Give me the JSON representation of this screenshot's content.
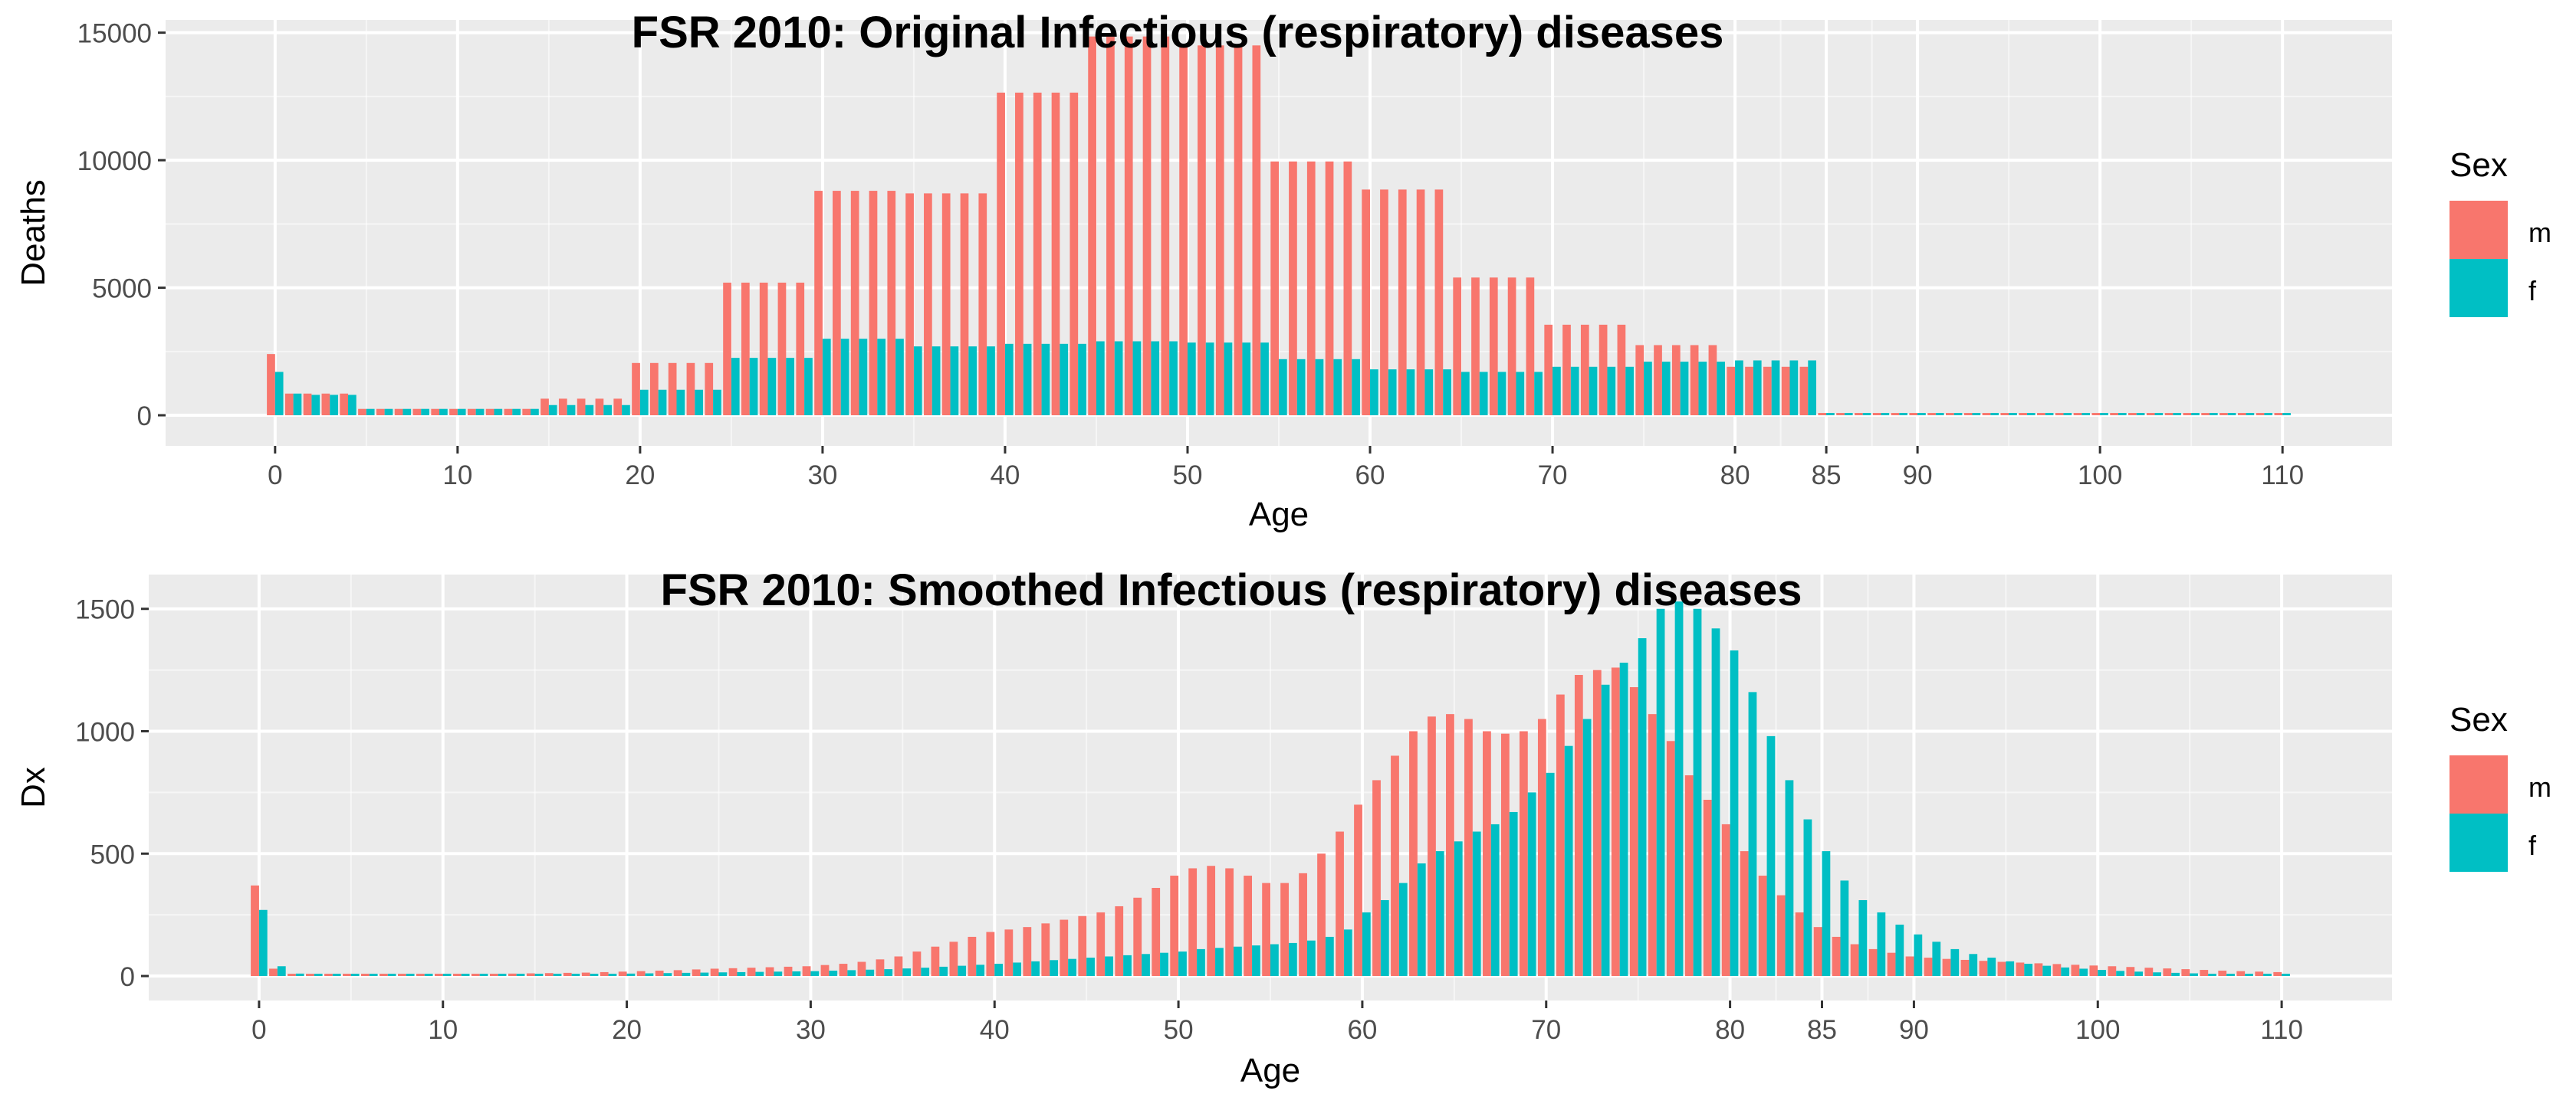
{
  "colors": {
    "m": "#F8766D",
    "f": "#00BFC4",
    "panel": "#EBEBEB",
    "grid_major": "#FFFFFF",
    "text": "#4D4D4D",
    "title": "#000000"
  },
  "chart_data": [
    {
      "type": "bar",
      "title": "FSR 2010: Original Infectious (respiratory) diseases",
      "xlabel": "Age",
      "ylabel": "Deaths",
      "legend_title": "Sex",
      "legend_position": "right",
      "grid": true,
      "xlim": [
        -6,
        116
      ],
      "ylim": [
        -1200,
        15500
      ],
      "x_ticks": [
        0,
        10,
        20,
        30,
        40,
        50,
        60,
        70,
        80,
        85,
        90,
        100,
        110
      ],
      "y_ticks": [
        0,
        5000,
        10000,
        15000
      ],
      "x": [
        0,
        1,
        2,
        3,
        4,
        5,
        6,
        7,
        8,
        9,
        10,
        11,
        12,
        13,
        14,
        15,
        16,
        17,
        18,
        19,
        20,
        21,
        22,
        23,
        24,
        25,
        26,
        27,
        28,
        29,
        30,
        31,
        32,
        33,
        34,
        35,
        36,
        37,
        38,
        39,
        40,
        41,
        42,
        43,
        44,
        45,
        46,
        47,
        48,
        49,
        50,
        51,
        52,
        53,
        54,
        55,
        56,
        57,
        58,
        59,
        60,
        61,
        62,
        63,
        64,
        65,
        66,
        67,
        68,
        69,
        70,
        71,
        72,
        73,
        74,
        75,
        76,
        77,
        78,
        79,
        80,
        81,
        82,
        83,
        84,
        85,
        86,
        87,
        88,
        89,
        90,
        91,
        92,
        93,
        94,
        95,
        96,
        97,
        98,
        99,
        100,
        101,
        102,
        103,
        104,
        105,
        106,
        107,
        108,
        109,
        110
      ],
      "series": [
        {
          "name": "m",
          "values": [
            2400,
            850,
            850,
            850,
            850,
            250,
            250,
            250,
            250,
            250,
            250,
            250,
            250,
            250,
            250,
            650,
            650,
            650,
            650,
            650,
            2050,
            2050,
            2050,
            2050,
            2050,
            5200,
            5200,
            5200,
            5200,
            5200,
            8800,
            8800,
            8800,
            8800,
            8800,
            8700,
            8700,
            8700,
            8700,
            8700,
            12650,
            12650,
            12650,
            12650,
            12650,
            14850,
            14850,
            14850,
            14850,
            14850,
            14500,
            14500,
            14500,
            14500,
            14500,
            9950,
            9950,
            9950,
            9950,
            9950,
            8850,
            8850,
            8850,
            8850,
            8850,
            5400,
            5400,
            5400,
            5400,
            5400,
            3550,
            3550,
            3550,
            3550,
            3550,
            2750,
            2750,
            2750,
            2750,
            2750,
            1900,
            1900,
            1900,
            1900,
            1900,
            0,
            0,
            0,
            0,
            0,
            0,
            0,
            0,
            0,
            0,
            0,
            0,
            0,
            0,
            0,
            0,
            0,
            0,
            0,
            0,
            0,
            0,
            0,
            0,
            0,
            0
          ]
        },
        {
          "name": "f",
          "values": [
            1700,
            850,
            800,
            800,
            800,
            250,
            250,
            250,
            250,
            250,
            250,
            250,
            250,
            250,
            250,
            400,
            400,
            400,
            400,
            400,
            1000,
            1000,
            1000,
            1000,
            1000,
            2250,
            2250,
            2250,
            2250,
            2250,
            3000,
            3000,
            3000,
            3000,
            3000,
            2700,
            2700,
            2700,
            2700,
            2700,
            2800,
            2800,
            2800,
            2800,
            2800,
            2900,
            2900,
            2900,
            2900,
            2900,
            2850,
            2850,
            2850,
            2850,
            2850,
            2200,
            2200,
            2200,
            2200,
            2200,
            1800,
            1800,
            1800,
            1800,
            1800,
            1700,
            1700,
            1700,
            1700,
            1700,
            1900,
            1900,
            1900,
            1900,
            1900,
            2100,
            2100,
            2100,
            2100,
            2100,
            2150,
            2150,
            2150,
            2150,
            2150,
            0,
            0,
            0,
            0,
            0,
            0,
            0,
            0,
            0,
            0,
            0,
            0,
            0,
            0,
            0,
            0,
            0,
            0,
            0,
            0,
            0,
            0,
            0,
            0,
            0,
            0
          ]
        }
      ]
    },
    {
      "type": "bar",
      "title": "FSR 2010: Smoothed Infectious (respiratory) diseases",
      "xlabel": "Age",
      "ylabel": "Dx",
      "legend_title": "Sex",
      "legend_position": "right",
      "grid": true,
      "xlim": [
        -6,
        116
      ],
      "ylim": [
        -100,
        1640
      ],
      "x_ticks": [
        0,
        10,
        20,
        30,
        40,
        50,
        60,
        70,
        80,
        85,
        90,
        100,
        110
      ],
      "y_ticks": [
        0,
        500,
        1000,
        1500
      ],
      "x": [
        0,
        1,
        2,
        3,
        4,
        5,
        6,
        7,
        8,
        9,
        10,
        11,
        12,
        13,
        14,
        15,
        16,
        17,
        18,
        19,
        20,
        21,
        22,
        23,
        24,
        25,
        26,
        27,
        28,
        29,
        30,
        31,
        32,
        33,
        34,
        35,
        36,
        37,
        38,
        39,
        40,
        41,
        42,
        43,
        44,
        45,
        46,
        47,
        48,
        49,
        50,
        51,
        52,
        53,
        54,
        55,
        56,
        57,
        58,
        59,
        60,
        61,
        62,
        63,
        64,
        65,
        66,
        67,
        68,
        69,
        70,
        71,
        72,
        73,
        74,
        75,
        76,
        77,
        78,
        79,
        80,
        81,
        82,
        83,
        84,
        85,
        86,
        87,
        88,
        89,
        90,
        91,
        92,
        93,
        94,
        95,
        96,
        97,
        98,
        99,
        100,
        101,
        102,
        103,
        104,
        105,
        106,
        107,
        108,
        109,
        110
      ],
      "series": [
        {
          "name": "m",
          "values": [
            370,
            30,
            5,
            3,
            3,
            3,
            3,
            3,
            4,
            5,
            6,
            7,
            8,
            9,
            10,
            11,
            12,
            13,
            14,
            16,
            18,
            20,
            22,
            24,
            27,
            30,
            32,
            34,
            36,
            38,
            40,
            45,
            50,
            58,
            68,
            80,
            100,
            120,
            140,
            160,
            180,
            190,
            200,
            215,
            230,
            245,
            260,
            285,
            320,
            360,
            410,
            440,
            450,
            440,
            410,
            380,
            380,
            420,
            500,
            590,
            700,
            800,
            900,
            1000,
            1060,
            1070,
            1050,
            1000,
            990,
            1000,
            1050,
            1150,
            1230,
            1250,
            1260,
            1180,
            1070,
            960,
            820,
            720,
            620,
            510,
            410,
            330,
            260,
            200,
            160,
            130,
            110,
            95,
            80,
            75,
            70,
            66,
            62,
            58,
            55,
            52,
            49,
            46,
            43,
            40,
            37,
            34,
            31,
            28,
            25,
            22,
            20,
            18,
            16
          ]
        },
        {
          "name": "f",
          "values": [
            270,
            40,
            10,
            5,
            5,
            5,
            5,
            5,
            5,
            5,
            5,
            6,
            6,
            6,
            7,
            7,
            8,
            8,
            9,
            9,
            10,
            11,
            12,
            13,
            14,
            15,
            16,
            17,
            18,
            19,
            20,
            22,
            24,
            26,
            28,
            31,
            34,
            38,
            42,
            46,
            50,
            55,
            60,
            65,
            70,
            75,
            80,
            85,
            90,
            95,
            100,
            110,
            115,
            120,
            125,
            130,
            135,
            145,
            160,
            190,
            260,
            310,
            380,
            460,
            510,
            550,
            590,
            620,
            670,
            750,
            830,
            940,
            1050,
            1190,
            1280,
            1380,
            1500,
            1530,
            1500,
            1420,
            1330,
            1160,
            980,
            800,
            640,
            510,
            390,
            310,
            260,
            210,
            170,
            140,
            110,
            90,
            75,
            60,
            50,
            42,
            35,
            30,
            25,
            21,
            18,
            15,
            13,
            11,
            9,
            8,
            7,
            6,
            5
          ]
        }
      ]
    }
  ]
}
